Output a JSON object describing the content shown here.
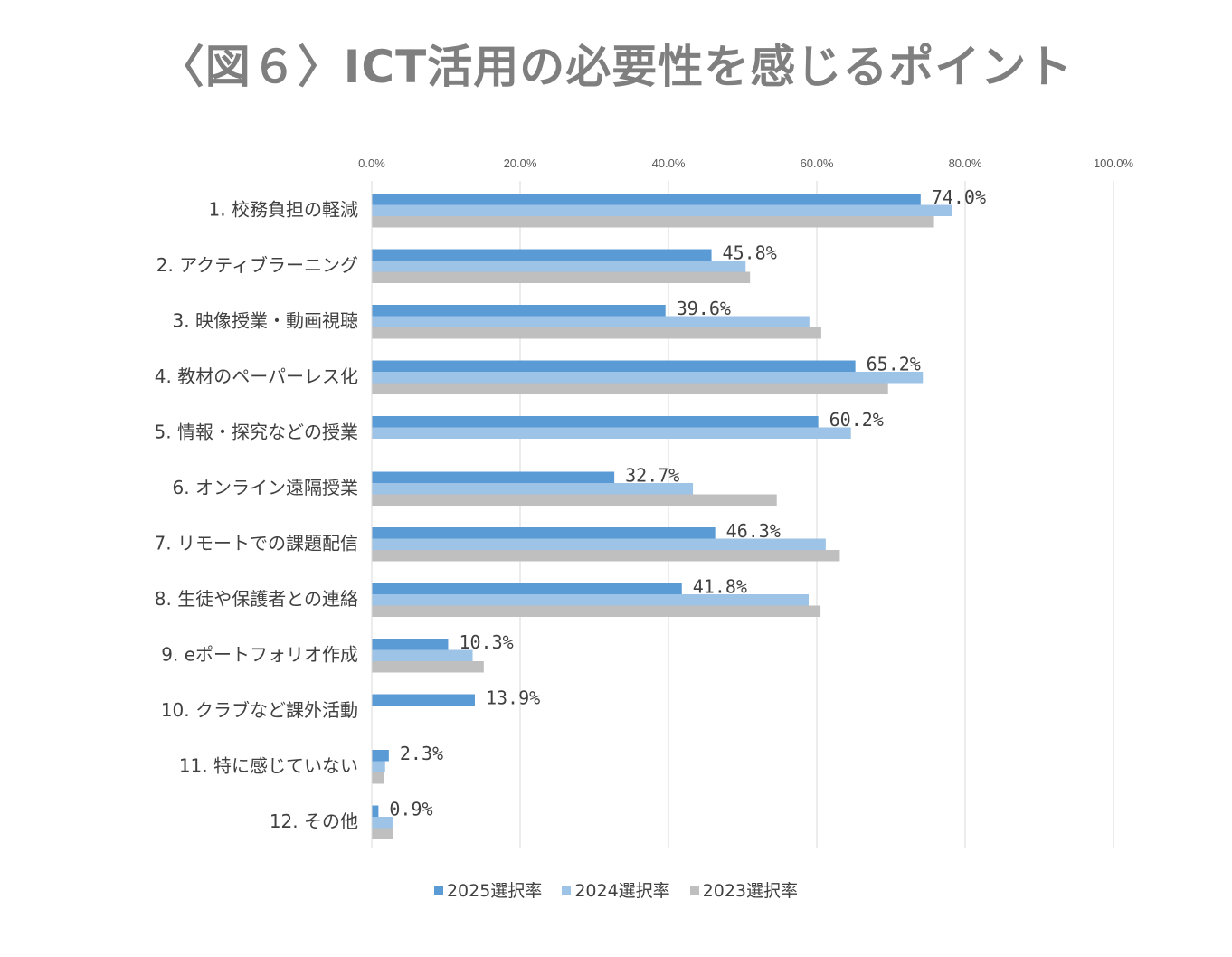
{
  "chart_data": {
    "type": "bar",
    "orientation": "horizontal",
    "title": "〈図６〉ICT活用の必要性を感じるポイント",
    "xlim": [
      0,
      100
    ],
    "x_ticks": [
      "0.0%",
      "20.0%",
      "40.0%",
      "60.0%",
      "80.0%",
      "100.0%"
    ],
    "x_tick_values": [
      0,
      20,
      40,
      60,
      80,
      100
    ],
    "grid": true,
    "legend_position": "bottom",
    "categories": [
      "1.  校務負担の軽減",
      "2.  アクティブラーニング",
      "3.  映像授業・動画視聴",
      "4.  教材のペーパーレス化",
      "5.  情報・探究などの授業",
      "6.  オンライン遠隔授業",
      "7.  リモートでの課題配信",
      "8.  生徒や保護者との連絡",
      "9.  eポートフォリオ作成",
      "10.  クラブなど課外活動",
      "11.  特に感じていない",
      "12.  その他"
    ],
    "series": [
      {
        "name": "2025選択率",
        "color": "#5b9bd5",
        "values": [
          74.0,
          45.8,
          39.6,
          65.2,
          60.2,
          32.7,
          46.3,
          41.8,
          10.3,
          13.9,
          2.3,
          0.9
        ],
        "labels": [
          "74.0%",
          "45.8%",
          "39.6%",
          "65.2%",
          "60.2%",
          "32.7%",
          "46.3%",
          "41.8%",
          "10.3%",
          "13.9%",
          "2.3%",
          "0.9%"
        ]
      },
      {
        "name": "2024選択率",
        "color": "#9dc3e6",
        "values": [
          78.2,
          50.4,
          59.0,
          74.3,
          64.6,
          43.3,
          61.2,
          58.9,
          13.6,
          null,
          1.8,
          2.8
        ]
      },
      {
        "name": "2023選択率",
        "color": "#bfbfbf",
        "values": [
          75.8,
          51.0,
          60.6,
          69.6,
          null,
          54.6,
          63.1,
          60.5,
          15.1,
          null,
          1.6,
          2.8
        ]
      }
    ]
  }
}
